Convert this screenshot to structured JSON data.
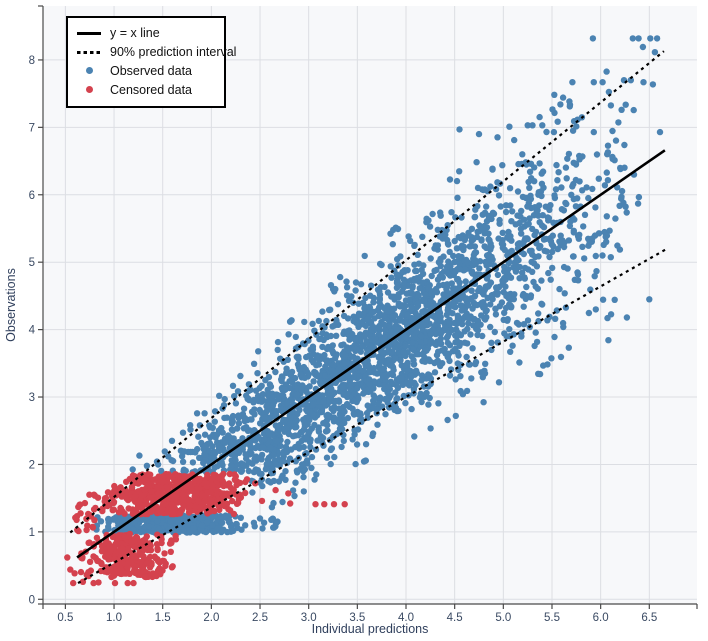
{
  "chart_data": {
    "type": "scatter",
    "title": "",
    "xlabel": "Individual predictions",
    "ylabel": "Observations",
    "xlim": [
      0.27,
      6.99
    ],
    "ylim": [
      -0.07,
      8.8
    ],
    "grid": true,
    "marker_radius": 3.2,
    "seed": 7,
    "colors": {
      "observed": "#4b83b2",
      "censored": "#d4424e",
      "line": "#000000",
      "grid": "#dcdee3",
      "plot_background": "#f7f8fa",
      "axis_line": "#4a4a4a",
      "axis_text": "#3a4a63"
    },
    "x_ticks": {
      "values": [
        0.5,
        1.0,
        1.5,
        2.0,
        2.5,
        3.0,
        3.5,
        4.0,
        4.5,
        5.0,
        5.5,
        6.0,
        6.5
      ],
      "labels": [
        "0.5",
        "1.0",
        "1.5",
        "2.0",
        "2.5",
        "3.0",
        "3.5",
        "4.0",
        "4.5",
        "5.0",
        "5.5",
        "6.0",
        "6.5"
      ]
    },
    "y_ticks": {
      "values": [
        0,
        1,
        2,
        3,
        4,
        5,
        6,
        7,
        8
      ],
      "labels": [
        "0",
        "1",
        "2",
        "3",
        "4",
        "5",
        "6",
        "7",
        "8"
      ]
    },
    "legend": {
      "position": "top-left",
      "items": [
        {
          "label": "y = x line",
          "type": "line",
          "style": "solid",
          "color": "#000000"
        },
        {
          "label": "90% prediction interval",
          "type": "line",
          "style": "dashed",
          "color": "#000000"
        },
        {
          "label": "Observed data",
          "type": "marker",
          "color": "#4b83b2"
        },
        {
          "label": "Censored data",
          "type": "marker",
          "color": "#d4424e"
        }
      ]
    },
    "lines": [
      {
        "name": "identity-line",
        "label": "y = x line",
        "style": "solid",
        "color": "#000000",
        "width": 2.6,
        "x": [
          0.62,
          6.66
        ],
        "y": [
          0.62,
          6.66
        ]
      },
      {
        "name": "pi-upper-line",
        "label": "90% prediction interval (upper)",
        "style": "dashed",
        "color": "#000000",
        "width": 2.2,
        "x": [
          0.55,
          6.65
        ],
        "y": [
          0.99,
          8.13
        ]
      },
      {
        "name": "pi-lower-line",
        "label": "90% prediction interval (lower)",
        "style": "dashed",
        "color": "#000000",
        "width": 2.2,
        "x": [
          0.63,
          6.67
        ],
        "y": [
          0.24,
          5.19
        ]
      }
    ],
    "series": [
      {
        "name": "Observed data",
        "point_name": "data-point-observed",
        "color": "#4b83b2",
        "clusters": [
          {
            "shape": "diagonal-cloud",
            "n": 2500,
            "x_range": [
              0.7,
              6.6
            ],
            "x_dist": "triangular",
            "sigma_slope": 0.105,
            "sigma_intercept": 0.19,
            "z_clip": 2.7,
            "y_floor": 0.98,
            "y_max": 8.38,
            "censor_zone": {
              "x_below": 2.4,
              "y_below": 1.88
            }
          },
          {
            "shape": "box",
            "n": 400,
            "x_range": [
              0.78,
              2.4
            ],
            "x_dist": "triangular",
            "y_range": [
              0.99,
              1.25
            ]
          },
          {
            "shape": "box",
            "n": 14,
            "x_range": [
              2.4,
              2.72
            ],
            "x_dist": "uniform",
            "y_range": [
              1.02,
              1.2
            ]
          }
        ],
        "points": [
          [
            5.92,
            8.32
          ],
          [
            6.33,
            8.32
          ],
          [
            6.39,
            8.32
          ],
          [
            6.51,
            8.32
          ],
          [
            6.58,
            8.32
          ],
          [
            5.71,
            7.67
          ],
          [
            5.93,
            7.67
          ],
          [
            6.02,
            7.67
          ],
          [
            6.24,
            7.7
          ],
          [
            6.31,
            7.7
          ],
          [
            6.44,
            7.67
          ],
          [
            5.25,
            7.03
          ],
          [
            5.3,
            7.03
          ],
          [
            5.4,
            7.03
          ],
          [
            5.52,
            6.93
          ],
          [
            5.93,
            6.93
          ],
          [
            6.61,
            6.93
          ],
          [
            4.55,
            6.97
          ],
          [
            4.75,
            6.9
          ],
          [
            6.07,
            4.17
          ],
          [
            6.27,
            4.18
          ],
          [
            6.5,
            4.45
          ],
          [
            5.95,
            4.3
          ]
        ]
      },
      {
        "name": "Censored data",
        "point_name": "data-point-censored",
        "color": "#d4424e",
        "clusters": [
          {
            "shape": "box",
            "n": 520,
            "x_range": [
              0.82,
              2.42
            ],
            "x_dist": "triangular",
            "y_range": [
              1.26,
              1.86
            ],
            "taper": {
              "x_below": 1.12,
              "y_max": 1.7
            }
          },
          {
            "shape": "box",
            "n": 25,
            "x_range": [
              0.6,
              0.85
            ],
            "x_dist": "uniform",
            "y_range": [
              1.0,
              1.58
            ]
          },
          {
            "shape": "box",
            "n": 280,
            "x_range": [
              0.58,
              1.68
            ],
            "x_dist": "triangular",
            "y_range": [
              0.33,
              0.97
            ]
          }
        ],
        "points": [
          [
            2.66,
            1.62
          ],
          [
            2.79,
            1.57
          ],
          [
            2.81,
            1.42
          ],
          [
            3.07,
            1.41
          ],
          [
            3.16,
            1.41
          ],
          [
            3.26,
            1.41
          ],
          [
            3.37,
            1.41
          ],
          [
            2.45,
            1.72
          ],
          [
            2.52,
            1.46
          ],
          [
            2.35,
            1.74
          ],
          [
            0.58,
            0.24
          ],
          [
            0.68,
            0.26
          ],
          [
            0.79,
            0.24
          ],
          [
            0.84,
            0.25
          ],
          [
            1.01,
            0.24
          ],
          [
            1.14,
            0.24
          ],
          [
            1.2,
            0.24
          ],
          [
            0.52,
            0.62
          ],
          [
            0.55,
            0.44
          ]
        ]
      }
    ]
  }
}
